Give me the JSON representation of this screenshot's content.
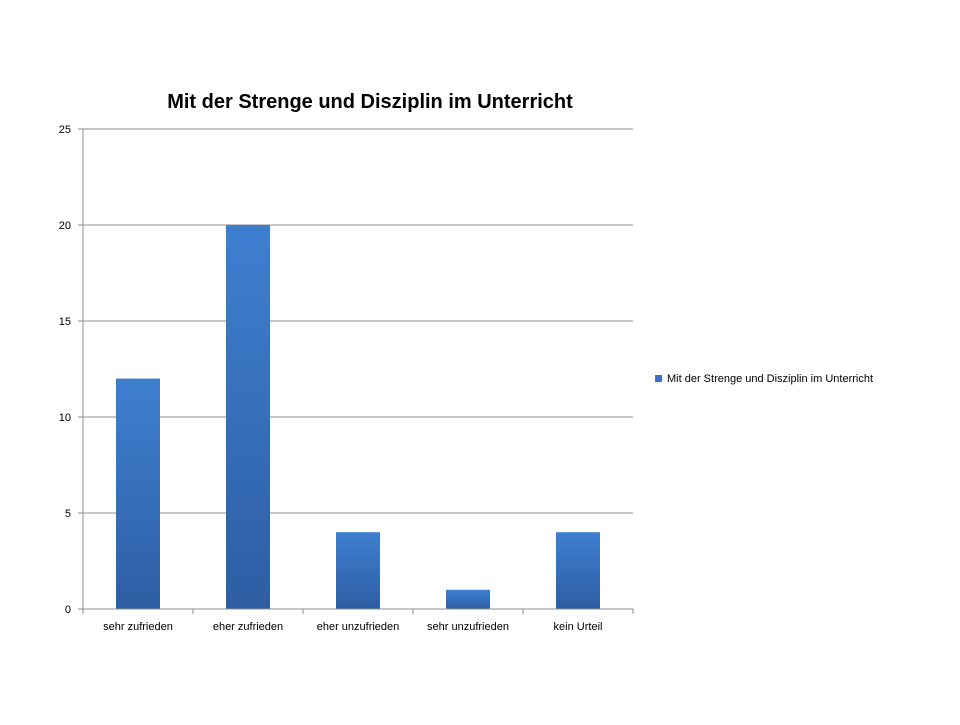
{
  "chart_data": {
    "type": "bar",
    "title": "Mit der Strenge und Disziplin im Unterricht",
    "categories": [
      "sehr zufrieden",
      "eher zufrieden",
      "eher unzufrieden",
      "sehr unzufrieden",
      "kein Urteil"
    ],
    "series": [
      {
        "name": "Mit der Strenge und Disziplin im Unterricht",
        "values": [
          12,
          20,
          4,
          1,
          4
        ],
        "color": "#3a74c0"
      }
    ],
    "ylim": [
      0,
      25
    ],
    "yticks": [
      0,
      5,
      10,
      15,
      20,
      25
    ],
    "grid": true,
    "legend_position": "right",
    "xlabel": "",
    "ylabel": ""
  }
}
